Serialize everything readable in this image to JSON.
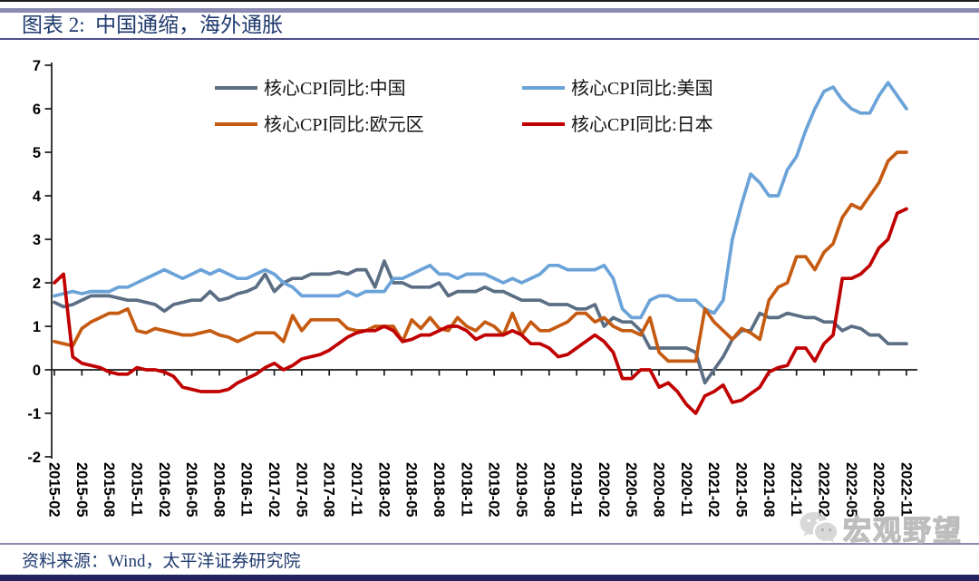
{
  "header": {
    "title": "图表 2:  中国通缩，海外通胀"
  },
  "footer": {
    "source": "资料来源：Wind，太平洋证券研究院"
  },
  "watermark": {
    "text": "宏观野望",
    "icon": "wechat-chat-bubbles",
    "color": "#c6c6c6"
  },
  "colors": {
    "title_navy": "#1f3a6e",
    "accent_bar": "#8a8ab0",
    "bottom_bar": "#23235f",
    "axis": "#1a1a1a"
  },
  "chart_data": {
    "type": "line",
    "title": "",
    "xlabel": "",
    "ylabel": "",
    "x_unit": "month",
    "x_range": [
      "2015-02",
      "2022-11"
    ],
    "x_tick_labels": [
      "2015-02",
      "2015-05",
      "2015-08",
      "2015-11",
      "2016-02",
      "2016-05",
      "2016-08",
      "2016-11",
      "2017-02",
      "2017-05",
      "2017-08",
      "2017-11",
      "2018-02",
      "2018-05",
      "2018-08",
      "2018-11",
      "2019-02",
      "2019-05",
      "2019-08",
      "2019-11",
      "2020-02",
      "2020-05",
      "2020-08",
      "2020-11",
      "2021-02",
      "2021-05",
      "2021-08",
      "2021-11",
      "2022-02",
      "2022-05",
      "2022-08",
      "2022-11"
    ],
    "months_per_tick": 3,
    "ylim": [
      -2,
      7
    ],
    "yticks": [
      7,
      6,
      5,
      4,
      3,
      2,
      1,
      0,
      -1,
      -2
    ],
    "grid": false,
    "zero_axis": true,
    "legend_position": "top-center",
    "series": [
      {
        "id": "china",
        "name": "核心CPI同比:中国",
        "color": "#5b6e84",
        "values": [
          1.55,
          1.45,
          1.5,
          1.6,
          1.7,
          1.7,
          1.7,
          1.65,
          1.6,
          1.6,
          1.55,
          1.5,
          1.35,
          1.5,
          1.55,
          1.6,
          1.6,
          1.8,
          1.6,
          1.65,
          1.75,
          1.8,
          1.9,
          2.2,
          1.8,
          2.0,
          2.1,
          2.1,
          2.2,
          2.2,
          2.2,
          2.25,
          2.2,
          2.3,
          2.3,
          1.9,
          2.5,
          2.0,
          2.0,
          1.9,
          1.9,
          1.9,
          2.0,
          1.7,
          1.8,
          1.8,
          1.8,
          1.9,
          1.8,
          1.8,
          1.7,
          1.6,
          1.6,
          1.6,
          1.5,
          1.5,
          1.5,
          1.4,
          1.4,
          1.5,
          1.0,
          1.2,
          1.1,
          1.1,
          0.9,
          0.5,
          0.5,
          0.5,
          0.5,
          0.5,
          0.4,
          -0.3,
          0.0,
          0.3,
          0.7,
          0.9,
          0.9,
          1.3,
          1.2,
          1.2,
          1.3,
          1.25,
          1.2,
          1.2,
          1.1,
          1.1,
          0.9,
          1.0,
          0.95,
          0.8,
          0.8,
          0.6,
          0.6,
          0.6
        ]
      },
      {
        "id": "us",
        "name": "核心CPI同比:美国",
        "color": "#6ba3d8",
        "values": [
          1.7,
          1.75,
          1.8,
          1.75,
          1.8,
          1.8,
          1.8,
          1.9,
          1.9,
          2.0,
          2.1,
          2.2,
          2.3,
          2.2,
          2.1,
          2.2,
          2.3,
          2.2,
          2.3,
          2.2,
          2.1,
          2.1,
          2.2,
          2.3,
          2.2,
          2.0,
          1.9,
          1.7,
          1.7,
          1.7,
          1.7,
          1.7,
          1.8,
          1.7,
          1.8,
          1.8,
          1.8,
          2.1,
          2.1,
          2.2,
          2.3,
          2.4,
          2.2,
          2.2,
          2.1,
          2.2,
          2.2,
          2.2,
          2.1,
          2.0,
          2.1,
          2.0,
          2.1,
          2.2,
          2.4,
          2.4,
          2.3,
          2.3,
          2.3,
          2.3,
          2.4,
          2.1,
          1.4,
          1.2,
          1.2,
          1.6,
          1.7,
          1.7,
          1.6,
          1.6,
          1.6,
          1.4,
          1.3,
          1.6,
          3.0,
          3.8,
          4.5,
          4.3,
          4.0,
          4.0,
          4.6,
          4.9,
          5.5,
          6.0,
          6.4,
          6.5,
          6.2,
          6.0,
          5.9,
          5.9,
          6.3,
          6.6,
          6.3,
          6.0
        ]
      },
      {
        "id": "eurozone",
        "name": "核心CPI同比:欧元区",
        "color": "#c55a11",
        "values": [
          0.65,
          0.6,
          0.55,
          0.95,
          1.1,
          1.2,
          1.3,
          1.3,
          1.4,
          0.9,
          0.85,
          0.95,
          0.9,
          0.85,
          0.8,
          0.8,
          0.85,
          0.9,
          0.8,
          0.75,
          0.65,
          0.75,
          0.85,
          0.85,
          0.85,
          0.65,
          1.25,
          0.9,
          1.15,
          1.15,
          1.15,
          1.15,
          0.95,
          0.9,
          0.9,
          1.0,
          1.0,
          1.0,
          0.65,
          1.15,
          0.95,
          1.2,
          0.95,
          0.9,
          1.2,
          1.0,
          0.9,
          1.1,
          1.0,
          0.8,
          1.3,
          0.8,
          1.1,
          0.9,
          0.9,
          1.0,
          1.1,
          1.3,
          1.3,
          1.1,
          1.2,
          1.0,
          0.9,
          0.9,
          0.8,
          1.2,
          0.4,
          0.2,
          0.2,
          0.2,
          0.2,
          1.4,
          1.1,
          0.9,
          0.7,
          0.95,
          0.85,
          0.7,
          1.6,
          1.9,
          2.0,
          2.6,
          2.6,
          2.3,
          2.7,
          2.9,
          3.5,
          3.8,
          3.7,
          4.0,
          4.3,
          4.8,
          5.0,
          5.0
        ]
      },
      {
        "id": "japan",
        "name": "核心CPI同比:日本",
        "color": "#c00000",
        "values": [
          2.0,
          2.2,
          0.3,
          0.15,
          0.1,
          0.05,
          -0.05,
          -0.1,
          -0.1,
          0.05,
          0.0,
          0.0,
          -0.05,
          -0.15,
          -0.4,
          -0.45,
          -0.5,
          -0.5,
          -0.5,
          -0.45,
          -0.3,
          -0.2,
          -0.1,
          0.05,
          0.15,
          0.0,
          0.1,
          0.25,
          0.3,
          0.35,
          0.45,
          0.6,
          0.75,
          0.85,
          0.9,
          0.9,
          1.0,
          0.9,
          0.65,
          0.7,
          0.8,
          0.8,
          0.9,
          1.0,
          1.0,
          0.9,
          0.7,
          0.8,
          0.8,
          0.8,
          0.9,
          0.8,
          0.6,
          0.6,
          0.5,
          0.3,
          0.35,
          0.5,
          0.65,
          0.8,
          0.65,
          0.4,
          -0.2,
          -0.2,
          0.0,
          0.0,
          -0.4,
          -0.3,
          -0.5,
          -0.8,
          -1.0,
          -0.6,
          -0.5,
          -0.35,
          -0.75,
          -0.7,
          -0.55,
          -0.4,
          -0.05,
          0.05,
          0.1,
          0.5,
          0.5,
          0.2,
          0.6,
          0.8,
          2.1,
          2.1,
          2.2,
          2.4,
          2.8,
          3.0,
          3.6,
          3.7
        ]
      }
    ]
  }
}
